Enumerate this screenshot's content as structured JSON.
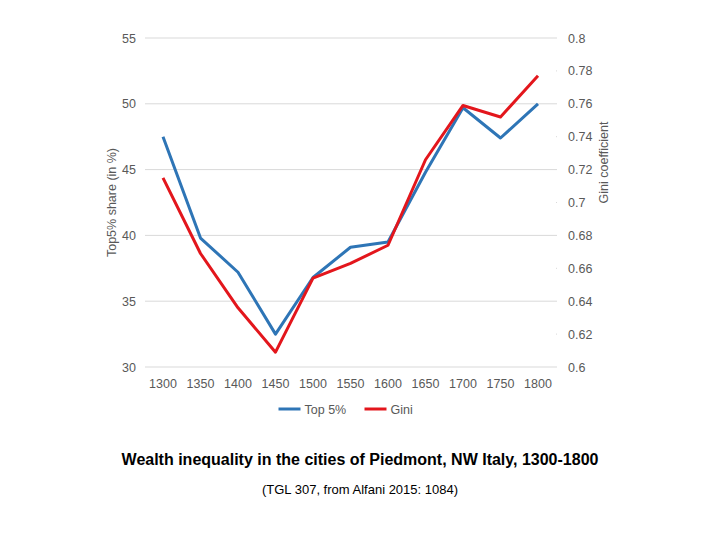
{
  "chart_data": {
    "type": "line",
    "title": "Wealth inequality in the cities of Piedmont, NW Italy, 1300-1800",
    "subtitle": "(TGL 307, from Alfani 2015: 1084)",
    "y_label": "Top5% share (in %)",
    "y2_label": "Gini coefficient",
    "categories": [
      "1300",
      "1350",
      "1400",
      "1450",
      "1500",
      "1550",
      "1600",
      "1650",
      "1700",
      "1750",
      "1800"
    ],
    "series": [
      {
        "name": "Top 5%",
        "color": "#2e75b6",
        "values": [
          47.5,
          39.8,
          37.2,
          32.5,
          36.8,
          39.1,
          39.5,
          44.8,
          49.7,
          47.4,
          50.0
        ]
      },
      {
        "name": "Gini",
        "color": "#e3161c",
        "axis": "y2",
        "values": [
          0.715,
          0.669,
          0.636,
          0.609,
          0.654,
          0.663,
          0.674,
          0.726,
          0.759,
          0.752,
          0.777
        ]
      }
    ],
    "ylim": [
      30,
      55
    ],
    "yticks": [
      30,
      35,
      40,
      45,
      50,
      55
    ],
    "y2lim": [
      0.6,
      0.8
    ],
    "y2ticks": [
      0.6,
      0.62,
      0.64,
      0.66,
      0.68,
      0.7,
      0.72,
      0.74,
      0.76,
      0.78,
      0.8
    ],
    "grid": true,
    "legend": "bottom"
  }
}
